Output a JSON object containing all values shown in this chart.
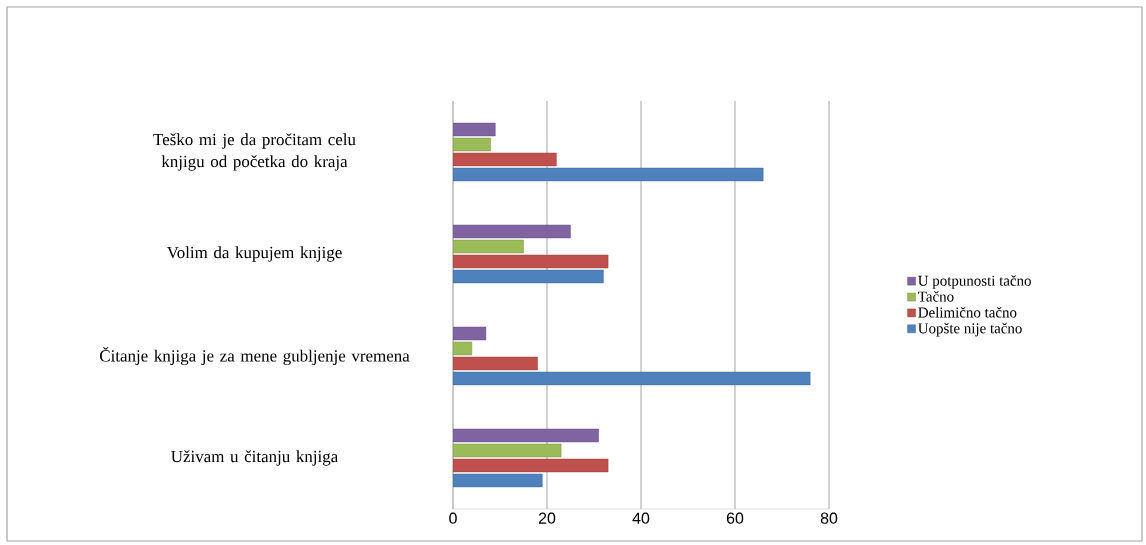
{
  "chart_data": {
    "type": "bar",
    "orientation": "horizontal",
    "categories": [
      "Teško mi je da pročitam celu knjigu od početka do kraja",
      "Volim da kupujem knjige",
      "Čitanje knjiga je za mene gubljenje vremena",
      "Uživam u čitanju knjiga"
    ],
    "series": [
      {
        "name": "Uopšte nije tačno",
        "color": "#4f81bd",
        "values": [
          66,
          32,
          76,
          19
        ]
      },
      {
        "name": "Delimično tačno",
        "color": "#c0504d",
        "values": [
          22,
          33,
          18,
          33
        ]
      },
      {
        "name": "Tačno",
        "color": "#9bbb59",
        "values": [
          8,
          15,
          4,
          23
        ]
      },
      {
        "name": "U potpunosti tačno",
        "color": "#8064a2",
        "values": [
          9,
          25,
          7,
          31
        ]
      }
    ],
    "xlim": [
      0,
      80
    ],
    "xticks": [
      0,
      20,
      40,
      60,
      80
    ],
    "grid": "x",
    "legend": "right"
  }
}
